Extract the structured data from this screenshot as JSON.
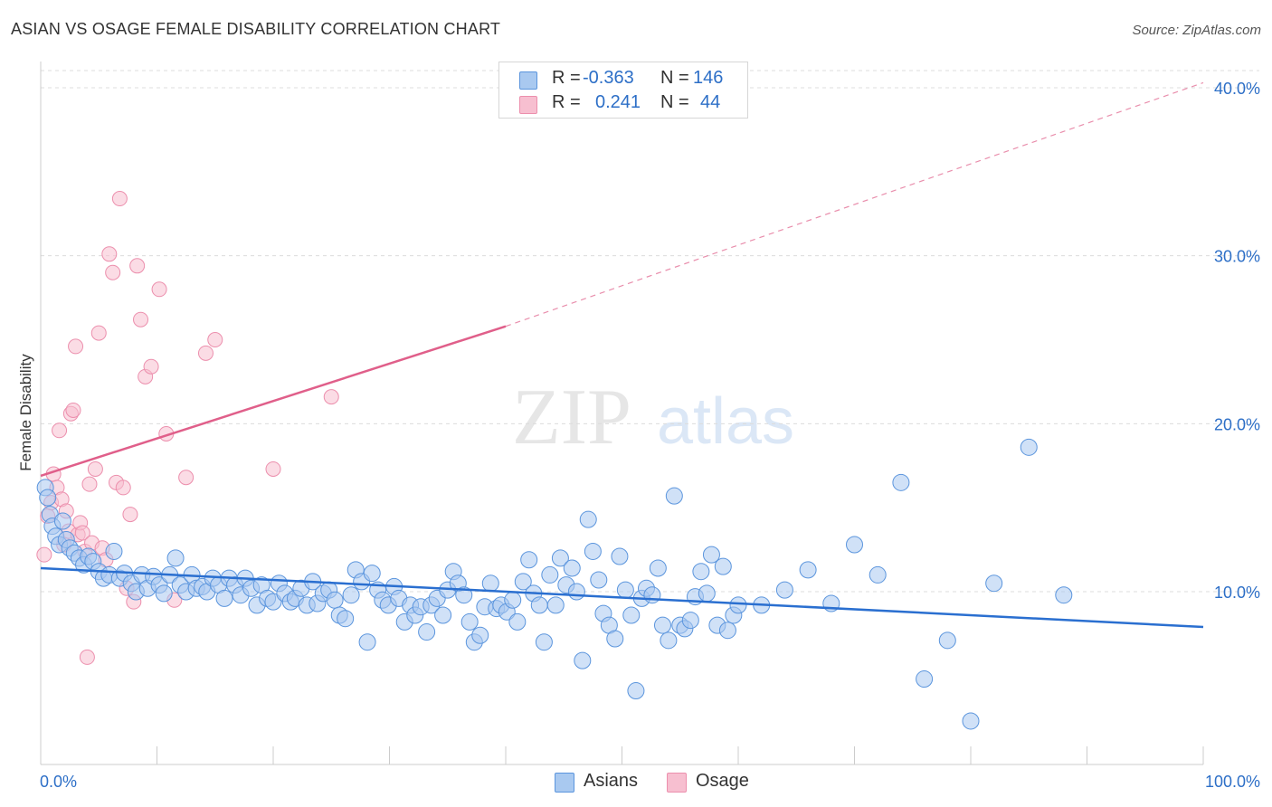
{
  "header": {
    "title": "ASIAN VS OSAGE FEMALE DISABILITY CORRELATION CHART",
    "source": "Source: ZipAtlas.com"
  },
  "watermark": {
    "zip": "ZIP",
    "atlas": "atlas"
  },
  "legend": {
    "r_label": "R =",
    "n_label": "N =",
    "rows": [
      {
        "r": "-0.363",
        "n": "146"
      },
      {
        "r": "0.241",
        "n": "44"
      }
    ]
  },
  "bottom_legend": {
    "asian": "Asians",
    "osage": "Osage"
  },
  "colors": {
    "asian_fill": "#a9c9f0",
    "asian_stroke": "#5b95dd",
    "asian_line": "#2a6fd0",
    "osage_fill": "#f7bfd0",
    "osage_stroke": "#ec8fad",
    "osage_line": "#e05f8a",
    "axis_text": "#2d6fc7",
    "grid": "#dcdcdc"
  },
  "chart_data": {
    "type": "scatter",
    "title": "ASIAN VS OSAGE FEMALE DISABILITY CORRELATION CHART",
    "xlabel": "",
    "ylabel": "Female Disability",
    "xlim": [
      0,
      100
    ],
    "ylim": [
      0,
      42
    ],
    "x_tick_labels": [
      "0.0%",
      "100.0%"
    ],
    "y_ticks": [
      10,
      20,
      30,
      40
    ],
    "y_tick_labels": [
      "10.0%",
      "20.0%",
      "30.0%",
      "40.0%"
    ],
    "grid": "horizontal dashed",
    "legend_position": "top-center",
    "series": [
      {
        "name": "Asians",
        "r": -0.363,
        "n": 146,
        "trend": {
          "x": [
            0,
            100
          ],
          "y": [
            11.4,
            7.9
          ]
        },
        "points": [
          [
            0.4,
            16.2
          ],
          [
            0.6,
            15.6
          ],
          [
            0.8,
            14.6
          ],
          [
            1.0,
            13.9
          ],
          [
            1.3,
            13.3
          ],
          [
            1.6,
            12.8
          ],
          [
            1.9,
            14.2
          ],
          [
            2.2,
            13.1
          ],
          [
            2.5,
            12.6
          ],
          [
            2.9,
            12.3
          ],
          [
            3.3,
            12.0
          ],
          [
            3.7,
            11.6
          ],
          [
            4.1,
            12.1
          ],
          [
            4.5,
            11.8
          ],
          [
            5.0,
            11.2
          ],
          [
            5.4,
            10.8
          ],
          [
            5.9,
            11.0
          ],
          [
            6.3,
            12.4
          ],
          [
            6.8,
            10.8
          ],
          [
            7.2,
            11.1
          ],
          [
            7.8,
            10.5
          ],
          [
            8.2,
            10.0
          ],
          [
            8.7,
            11.0
          ],
          [
            9.2,
            10.2
          ],
          [
            9.7,
            10.9
          ],
          [
            10.2,
            10.4
          ],
          [
            10.6,
            9.9
          ],
          [
            11.1,
            11.0
          ],
          [
            11.6,
            12.0
          ],
          [
            12.0,
            10.4
          ],
          [
            12.5,
            10.0
          ],
          [
            13.0,
            11.0
          ],
          [
            13.4,
            10.2
          ],
          [
            13.9,
            10.3
          ],
          [
            14.3,
            10.0
          ],
          [
            14.8,
            10.8
          ],
          [
            15.3,
            10.4
          ],
          [
            15.8,
            9.6
          ],
          [
            16.2,
            10.8
          ],
          [
            16.7,
            10.4
          ],
          [
            17.2,
            9.8
          ],
          [
            17.6,
            10.8
          ],
          [
            18.1,
            10.2
          ],
          [
            18.6,
            9.2
          ],
          [
            19.0,
            10.4
          ],
          [
            19.5,
            9.6
          ],
          [
            20.0,
            9.4
          ],
          [
            20.5,
            10.5
          ],
          [
            21.0,
            9.9
          ],
          [
            21.5,
            9.4
          ],
          [
            21.9,
            9.6
          ],
          [
            22.4,
            10.2
          ],
          [
            22.9,
            9.2
          ],
          [
            23.4,
            10.6
          ],
          [
            23.8,
            9.3
          ],
          [
            24.3,
            9.9
          ],
          [
            24.8,
            10.1
          ],
          [
            25.3,
            9.5
          ],
          [
            25.7,
            8.6
          ],
          [
            26.2,
            8.4
          ],
          [
            26.7,
            9.8
          ],
          [
            27.1,
            11.3
          ],
          [
            27.6,
            10.6
          ],
          [
            28.1,
            7.0
          ],
          [
            28.5,
            11.1
          ],
          [
            29.0,
            10.1
          ],
          [
            29.4,
            9.5
          ],
          [
            29.9,
            9.2
          ],
          [
            30.4,
            10.3
          ],
          [
            30.8,
            9.6
          ],
          [
            31.3,
            8.2
          ],
          [
            31.8,
            9.2
          ],
          [
            32.2,
            8.6
          ],
          [
            32.7,
            9.1
          ],
          [
            33.2,
            7.6
          ],
          [
            33.6,
            9.2
          ],
          [
            34.1,
            9.6
          ],
          [
            34.6,
            8.6
          ],
          [
            35.0,
            10.1
          ],
          [
            35.5,
            11.2
          ],
          [
            35.9,
            10.5
          ],
          [
            36.4,
            9.8
          ],
          [
            36.9,
            8.2
          ],
          [
            37.3,
            7.0
          ],
          [
            37.8,
            7.4
          ],
          [
            38.2,
            9.1
          ],
          [
            38.7,
            10.5
          ],
          [
            39.2,
            9.0
          ],
          [
            39.6,
            9.2
          ],
          [
            40.1,
            8.8
          ],
          [
            40.6,
            9.5
          ],
          [
            41.0,
            8.2
          ],
          [
            41.5,
            10.6
          ],
          [
            42.0,
            11.9
          ],
          [
            42.4,
            9.9
          ],
          [
            42.9,
            9.2
          ],
          [
            43.3,
            7.0
          ],
          [
            43.8,
            11.0
          ],
          [
            44.3,
            9.2
          ],
          [
            44.7,
            12.0
          ],
          [
            45.2,
            10.4
          ],
          [
            45.7,
            11.4
          ],
          [
            46.1,
            10.0
          ],
          [
            46.6,
            5.9
          ],
          [
            47.1,
            14.3
          ],
          [
            47.5,
            12.4
          ],
          [
            48.0,
            10.7
          ],
          [
            48.4,
            8.7
          ],
          [
            48.9,
            8.0
          ],
          [
            49.4,
            7.2
          ],
          [
            49.8,
            12.1
          ],
          [
            50.3,
            10.1
          ],
          [
            50.8,
            8.6
          ],
          [
            51.2,
            4.1
          ],
          [
            51.7,
            9.6
          ],
          [
            52.1,
            10.2
          ],
          [
            52.6,
            9.8
          ],
          [
            53.1,
            11.4
          ],
          [
            53.5,
            8.0
          ],
          [
            54.0,
            7.1
          ],
          [
            54.5,
            15.7
          ],
          [
            55.0,
            8.0
          ],
          [
            55.4,
            7.8
          ],
          [
            55.9,
            8.3
          ],
          [
            56.3,
            9.7
          ],
          [
            56.8,
            11.2
          ],
          [
            57.3,
            9.9
          ],
          [
            57.7,
            12.2
          ],
          [
            58.2,
            8.0
          ],
          [
            58.7,
            11.5
          ],
          [
            59.1,
            7.7
          ],
          [
            59.6,
            8.6
          ],
          [
            60.0,
            9.2
          ],
          [
            62.0,
            9.2
          ],
          [
            64.0,
            10.1
          ],
          [
            66.0,
            11.3
          ],
          [
            68.0,
            9.3
          ],
          [
            70.0,
            12.8
          ],
          [
            72.0,
            11.0
          ],
          [
            74.0,
            16.5
          ],
          [
            76.0,
            4.8
          ],
          [
            78.0,
            7.1
          ],
          [
            80.0,
            2.3
          ],
          [
            82.0,
            10.5
          ],
          [
            85.0,
            18.6
          ],
          [
            88.0,
            9.8
          ]
        ]
      },
      {
        "name": "Osage",
        "r": 0.241,
        "n": 44,
        "trend": {
          "x": [
            0,
            40
          ],
          "y": [
            16.9,
            25.8
          ],
          "extended_to": [
            100,
            40.3
          ]
        },
        "points": [
          [
            0.3,
            12.2
          ],
          [
            0.6,
            14.5
          ],
          [
            0.9,
            15.3
          ],
          [
            1.1,
            17.0
          ],
          [
            1.4,
            16.2
          ],
          [
            1.6,
            19.6
          ],
          [
            1.8,
            15.5
          ],
          [
            2.0,
            12.8
          ],
          [
            2.2,
            14.8
          ],
          [
            2.4,
            13.6
          ],
          [
            2.6,
            20.6
          ],
          [
            2.8,
            20.8
          ],
          [
            3.0,
            24.6
          ],
          [
            3.2,
            13.4
          ],
          [
            3.4,
            14.1
          ],
          [
            3.6,
            13.5
          ],
          [
            3.8,
            12.4
          ],
          [
            4.0,
            6.1
          ],
          [
            4.2,
            16.4
          ],
          [
            4.4,
            12.9
          ],
          [
            4.7,
            17.3
          ],
          [
            5.0,
            25.4
          ],
          [
            5.3,
            12.6
          ],
          [
            5.6,
            11.9
          ],
          [
            5.9,
            30.1
          ],
          [
            6.2,
            29.0
          ],
          [
            6.5,
            16.5
          ],
          [
            6.8,
            33.4
          ],
          [
            7.1,
            16.2
          ],
          [
            7.4,
            10.2
          ],
          [
            7.7,
            14.6
          ],
          [
            8.0,
            9.4
          ],
          [
            8.3,
            29.4
          ],
          [
            8.6,
            26.2
          ],
          [
            9.0,
            22.8
          ],
          [
            9.5,
            23.4
          ],
          [
            10.2,
            28.0
          ],
          [
            10.8,
            19.4
          ],
          [
            11.5,
            9.5
          ],
          [
            12.5,
            16.8
          ],
          [
            14.2,
            24.2
          ],
          [
            15.0,
            25.0
          ],
          [
            20.0,
            17.3
          ],
          [
            25.0,
            21.6
          ]
        ]
      }
    ]
  }
}
